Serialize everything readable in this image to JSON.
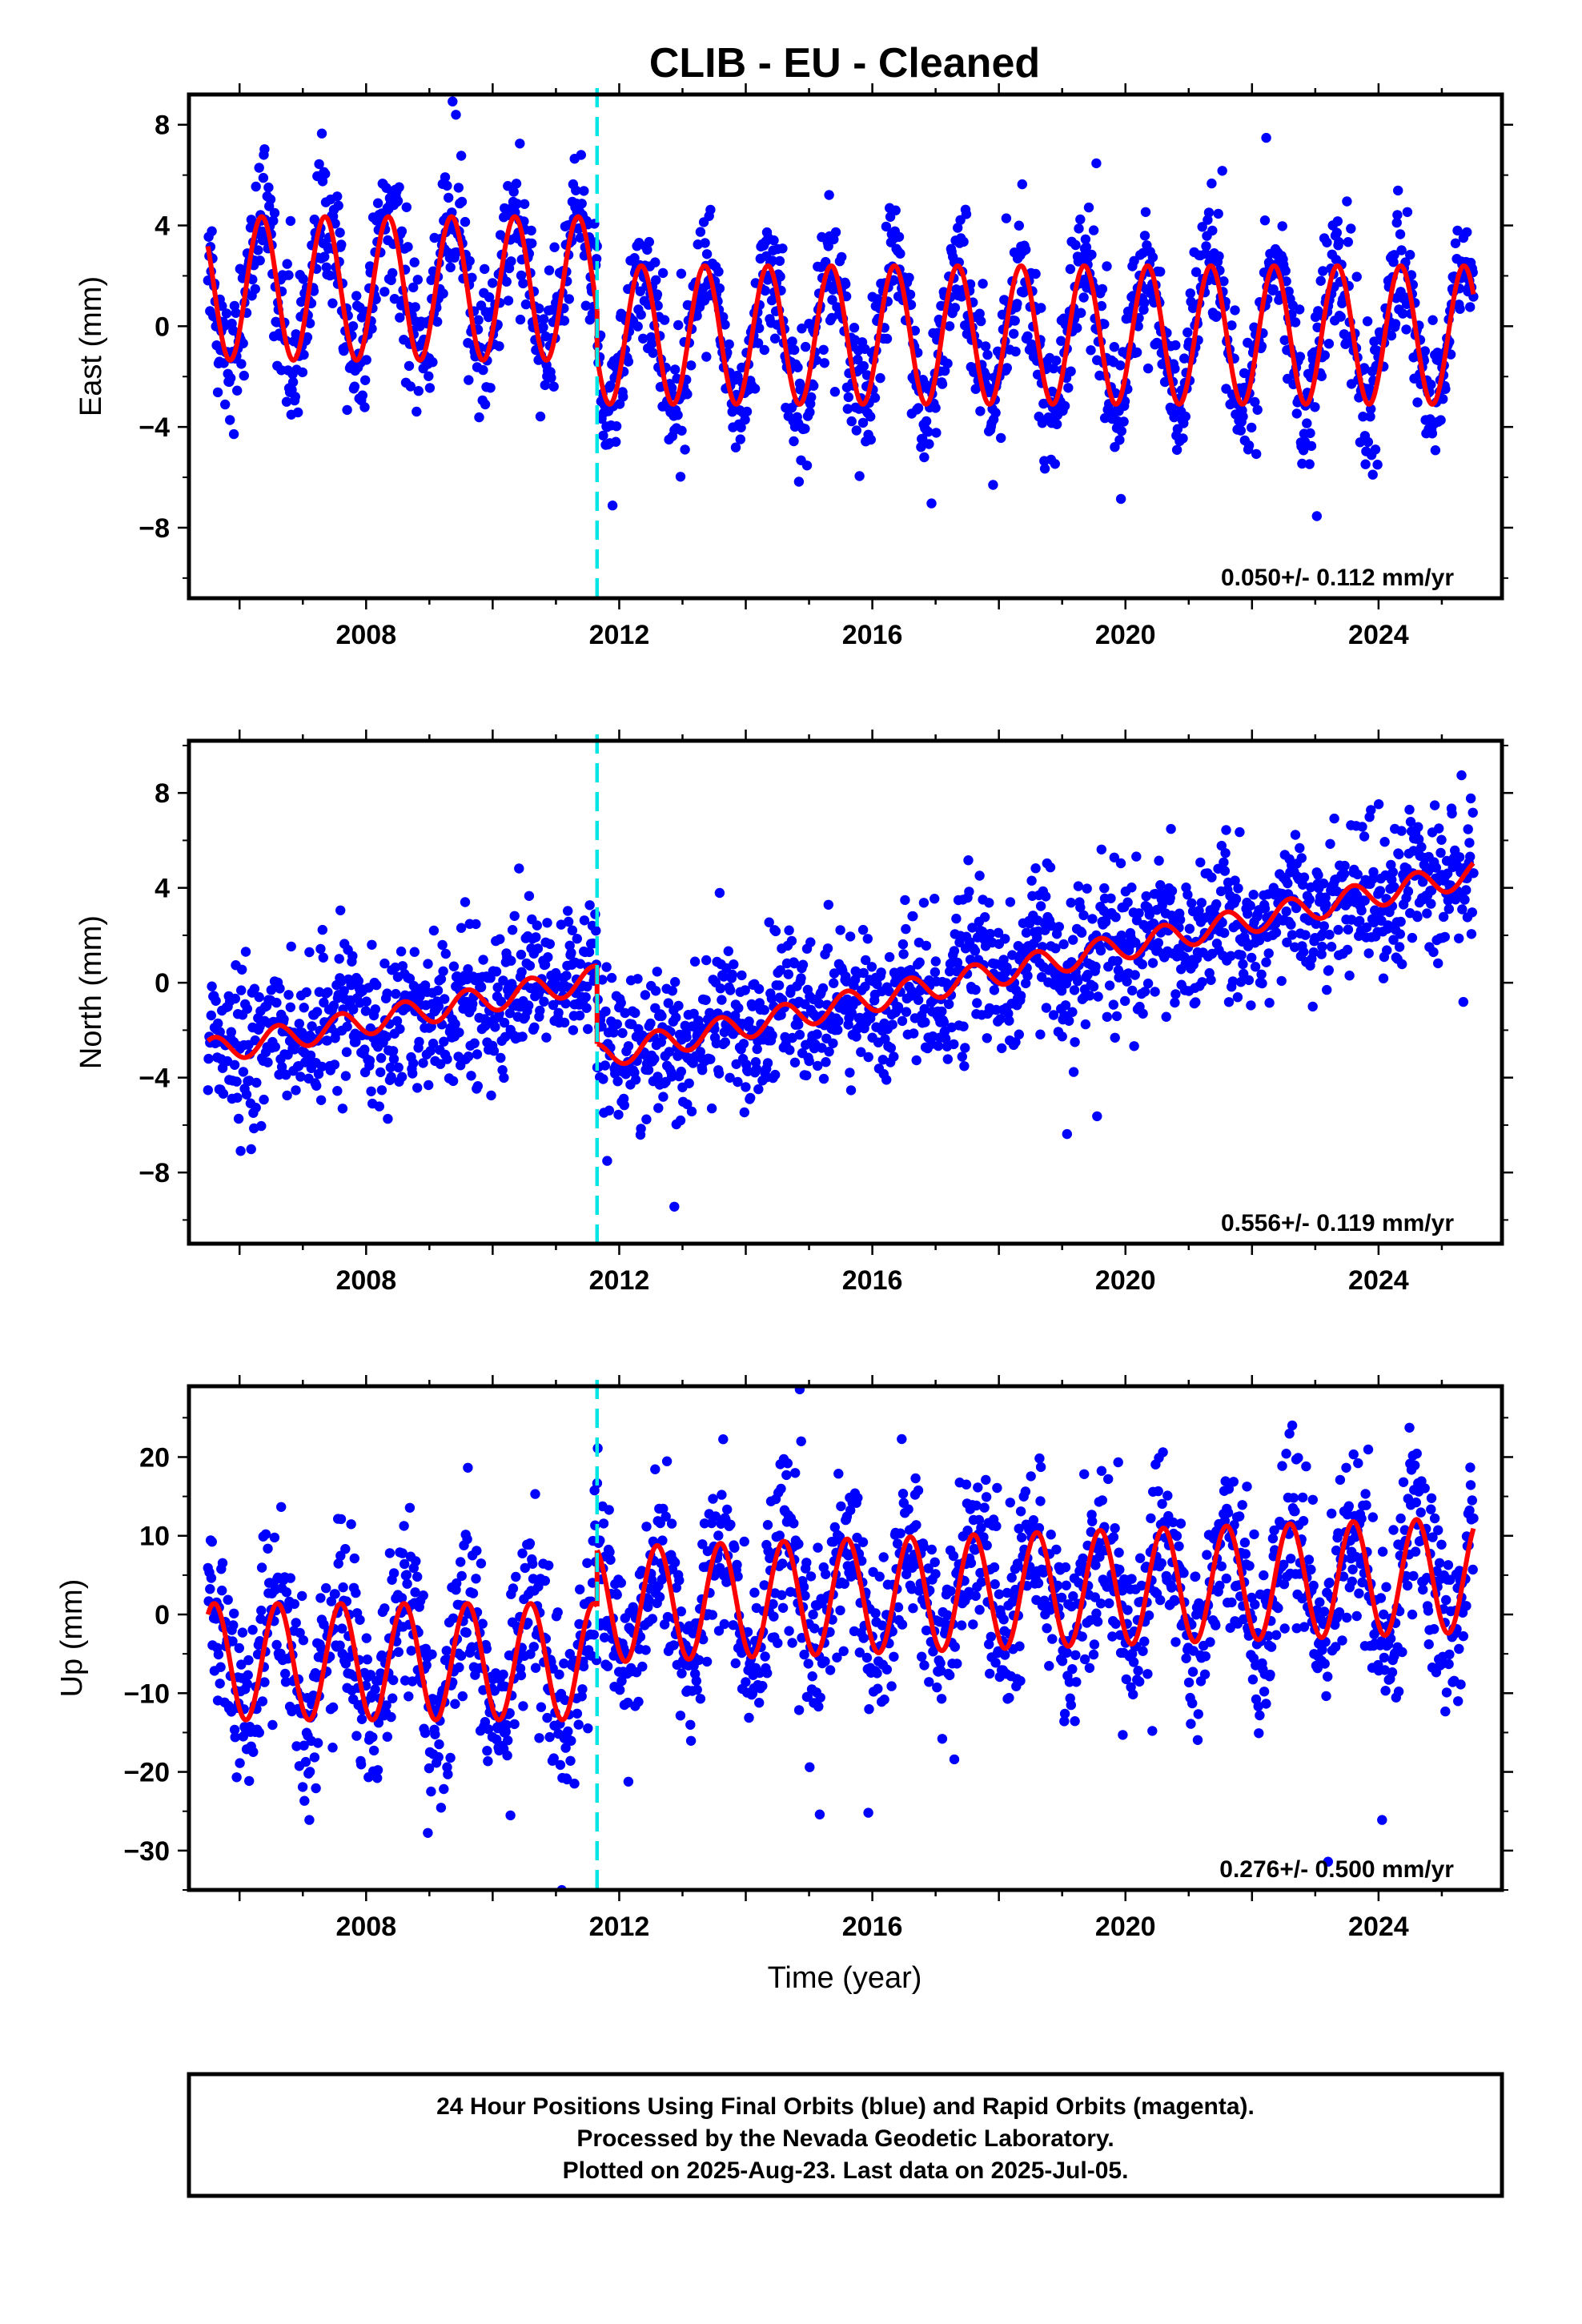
{
  "title": "CLIB  - EU - Cleaned",
  "xlabel": "Time (year)",
  "footer": {
    "line1": "24 Hour Positions Using Final Orbits (blue) and Rapid Orbits (magenta).",
    "line2": "Processed by the Nevada Geodetic Laboratory.",
    "line3": "Plotted on 2025-Aug-23. Last data on 2025-Jul-05."
  },
  "colors": {
    "points": "#0000ff",
    "model": "#ff0000",
    "break_line": "#00e5e5",
    "frame": "#000000"
  },
  "chart_data": [
    {
      "type": "scatter",
      "ylabel": "East (mm)",
      "rate_text": "0.050+/- 0.112 mm/yr",
      "xlim": [
        2005.2,
        2025.95
      ],
      "ylim": [
        -10.8,
        9.2
      ],
      "xticks": [
        2008,
        2012,
        2016,
        2020,
        2024
      ],
      "yticks": [
        -8,
        -4,
        0,
        4,
        8
      ],
      "ytick_labels": [
        "−8",
        "−4",
        "0",
        "4",
        "8"
      ],
      "x_range": [
        2005.5,
        2025.5
      ],
      "break_year": 2011.65,
      "grid": false,
      "series": [
        {
          "kind": "points",
          "model": {
            "segments": [
              {
                "x_start": 2005.5,
                "x_end": 2011.65,
                "offset": 1.5,
                "amplitude": 2.85,
                "trend": 0.0
              },
              {
                "x_start": 2011.65,
                "x_end": 2025.5,
                "offset": -0.35,
                "amplitude": 2.75,
                "trend": 0.0
              }
            ],
            "phase_peak": 0.35
          },
          "scatter_sd": 1.3,
          "sample_count": 1900
        }
      ]
    },
    {
      "type": "scatter",
      "ylabel": "North (mm)",
      "rate_text": "0.556+/- 0.119 mm/yr",
      "xlim": [
        2005.2,
        2025.95
      ],
      "ylim": [
        -11.0,
        10.2
      ],
      "xticks": [
        2008,
        2012,
        2016,
        2020,
        2024
      ],
      "yticks": [
        -8,
        -4,
        0,
        4,
        8
      ],
      "ytick_labels": [
        "−8",
        "−4",
        "0",
        "4",
        "8"
      ],
      "x_range": [
        2005.5,
        2025.5
      ],
      "break_year": 2011.65,
      "grid": false,
      "series": [
        {
          "kind": "points",
          "model": {
            "segments": [
              {
                "x_start": 2005.5,
                "x_end": 2011.65,
                "offset": -2.9,
                "amplitude": 0.55,
                "trend": 0.5
              },
              {
                "x_start": 2011.65,
                "x_end": 2025.5,
                "offset": -3.1,
                "amplitude": 0.55,
                "trend": 0.556
              }
            ],
            "phase_peak": 0.6
          },
          "scatter_sd": 1.5,
          "sample_count": 1900
        }
      ]
    },
    {
      "type": "scatter",
      "ylabel": "Up (mm)",
      "rate_text": "0.276+/- 0.500 mm/yr",
      "xlim": [
        2005.2,
        2025.95
      ],
      "ylim": [
        -35.0,
        29.0
      ],
      "xticks": [
        2008,
        2012,
        2016,
        2020,
        2024
      ],
      "yticks": [
        -30,
        -20,
        -10,
        0,
        10,
        20
      ],
      "ytick_labels": [
        "−30",
        "−20",
        "−10",
        "0",
        "10",
        "20"
      ],
      "x_range": [
        2005.5,
        2025.5
      ],
      "break_year": 2011.65,
      "grid": false,
      "series": [
        {
          "kind": "points",
          "model": {
            "segments": [
              {
                "x_start": 2005.5,
                "x_end": 2011.65,
                "offset": -6.0,
                "amplitude": 7.4,
                "trend": 0.0
              },
              {
                "x_start": 2011.65,
                "x_end": 2025.5,
                "offset": 1.2,
                "amplitude": 7.3,
                "trend": 0.276
              }
            ],
            "phase_peak": 0.6
          },
          "scatter_sd": 5.5,
          "sample_count": 1900
        }
      ]
    }
  ]
}
